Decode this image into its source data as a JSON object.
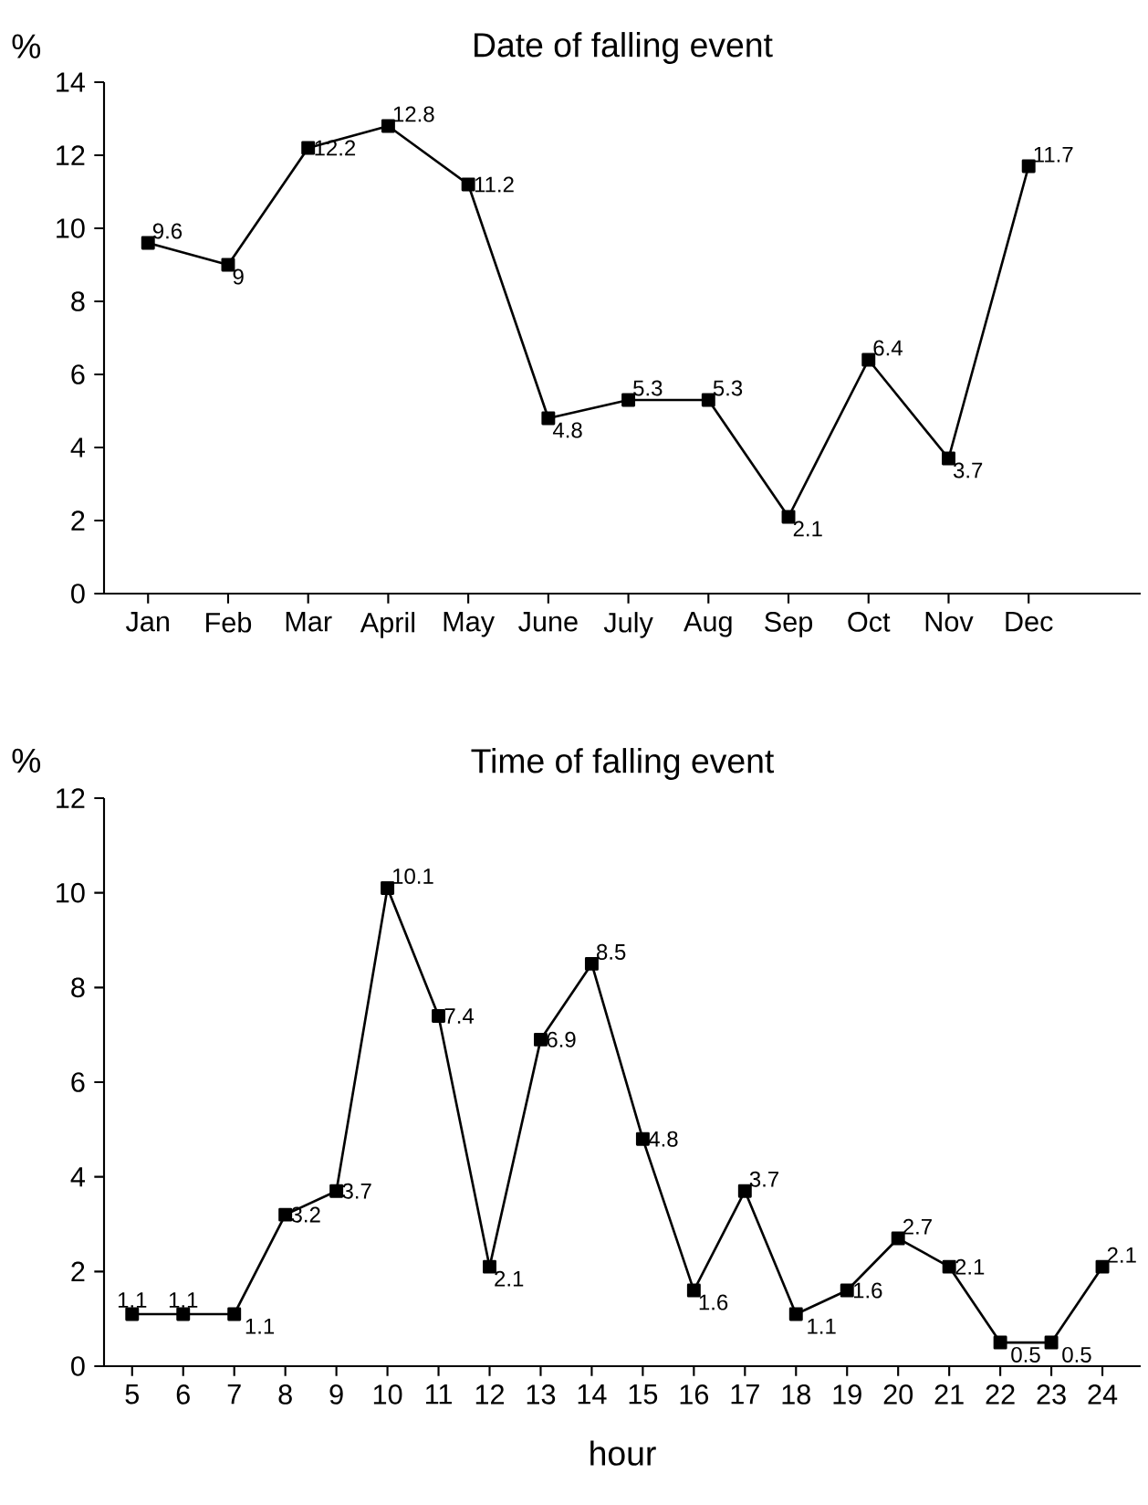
{
  "chart_data": [
    {
      "type": "line",
      "title": "Date of falling event",
      "ylabel": "%",
      "categories": [
        "Jan",
        "Feb",
        "Mar",
        "April",
        "May",
        "June",
        "July",
        "Aug",
        "Sep",
        "Oct",
        "Nov",
        "Dec"
      ],
      "values": [
        9.6,
        9,
        12.2,
        12.8,
        11.2,
        4.8,
        5.3,
        5.3,
        2.1,
        6.4,
        3.7,
        11.7
      ],
      "color": "#000000",
      "marker": "square",
      "data_labels": true,
      "ylim": [
        0,
        14
      ],
      "yticks": [
        0,
        2,
        4,
        6,
        8,
        10,
        12,
        14
      ]
    },
    {
      "type": "line",
      "title": "Time of falling event",
      "ylabel": "%",
      "xlabel": "hour",
      "categories": [
        "5",
        "6",
        "7",
        "8",
        "9",
        "10",
        "11",
        "12",
        "13",
        "14",
        "15",
        "16",
        "17",
        "18",
        "19",
        "20",
        "21",
        "22",
        "23",
        "24"
      ],
      "values": [
        1.1,
        1.1,
        1.1,
        3.2,
        3.7,
        10.1,
        7.4,
        2.1,
        6.9,
        8.5,
        4.8,
        1.6,
        3.7,
        1.1,
        1.6,
        2.7,
        2.1,
        0.5,
        0.5,
        2.1
      ],
      "color": "#000000",
      "marker": "square",
      "data_labels": true,
      "ylim": [
        0,
        12
      ],
      "yticks": [
        0,
        2,
        4,
        6,
        8,
        10,
        12
      ]
    }
  ]
}
